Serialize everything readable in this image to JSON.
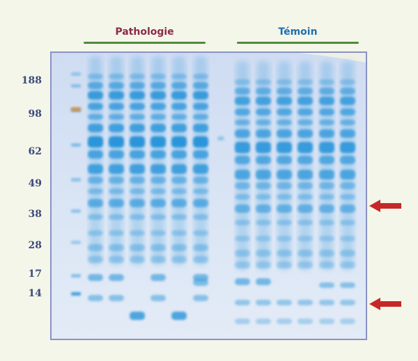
{
  "groups": [
    {
      "label": "Pathologie",
      "color": "#8b2b47"
    },
    {
      "label": "Témoin",
      "color": "#1f6fb0"
    }
  ],
  "markers": [
    "188",
    "98",
    "62",
    "49",
    "38",
    "28",
    "17",
    "14"
  ],
  "colors": {
    "band": "#1f8fd8",
    "gel_bg": "#d8e4f4",
    "arrow": "#c62828",
    "group_bar": "#4f8a3d"
  }
}
